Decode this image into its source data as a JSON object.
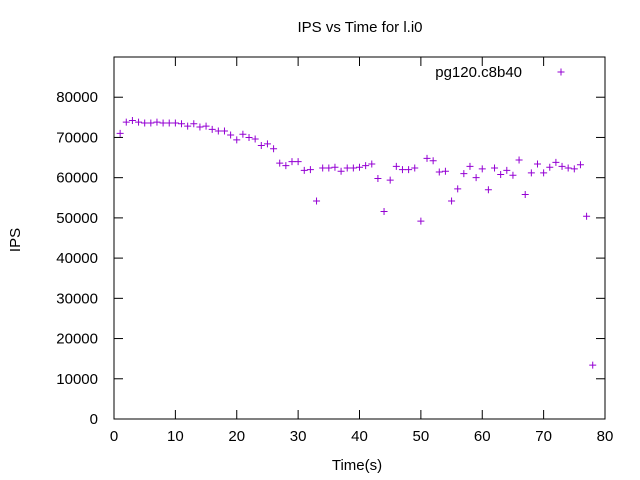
{
  "chart_data": {
    "type": "scatter",
    "title": "IPS vs Time for l.i0",
    "xlabel": "Time(s)",
    "ylabel": "IPS",
    "xlim": [
      0,
      80
    ],
    "ylim": [
      0,
      90000
    ],
    "x_ticks": [
      "0",
      "10",
      "20",
      "30",
      "40",
      "50",
      "60",
      "70",
      "80"
    ],
    "y_ticks": [
      "0",
      "10000",
      "20000",
      "30000",
      "40000",
      "50000",
      "60000",
      "70000",
      "80000"
    ],
    "grid": false,
    "legend_position": "top-right",
    "marker": "+",
    "series": [
      {
        "name": "pg120.c8b40",
        "color": "#9400d3",
        "points": [
          [
            1,
            71000
          ],
          [
            2,
            73800
          ],
          [
            3,
            74200
          ],
          [
            4,
            73800
          ],
          [
            5,
            73600
          ],
          [
            6,
            73600
          ],
          [
            7,
            73800
          ],
          [
            8,
            73600
          ],
          [
            9,
            73600
          ],
          [
            10,
            73600
          ],
          [
            11,
            73400
          ],
          [
            12,
            72800
          ],
          [
            13,
            73400
          ],
          [
            14,
            72600
          ],
          [
            15,
            72800
          ],
          [
            16,
            72000
          ],
          [
            17,
            71600
          ],
          [
            18,
            71600
          ],
          [
            19,
            70600
          ],
          [
            20,
            69400
          ],
          [
            21,
            70800
          ],
          [
            22,
            70000
          ],
          [
            23,
            69600
          ],
          [
            24,
            68000
          ],
          [
            25,
            68400
          ],
          [
            26,
            67200
          ],
          [
            27,
            63600
          ],
          [
            28,
            63000
          ],
          [
            29,
            64000
          ],
          [
            30,
            64000
          ],
          [
            31,
            61800
          ],
          [
            32,
            62000
          ],
          [
            33,
            54200
          ],
          [
            34,
            62400
          ],
          [
            35,
            62400
          ],
          [
            36,
            62600
          ],
          [
            37,
            61600
          ],
          [
            38,
            62400
          ],
          [
            39,
            62400
          ],
          [
            40,
            62600
          ],
          [
            41,
            63000
          ],
          [
            42,
            63400
          ],
          [
            43,
            59800
          ],
          [
            44,
            51600
          ],
          [
            45,
            59400
          ],
          [
            46,
            62800
          ],
          [
            47,
            62000
          ],
          [
            48,
            62000
          ],
          [
            49,
            62400
          ],
          [
            50,
            49200
          ],
          [
            51,
            64800
          ],
          [
            52,
            64200
          ],
          [
            53,
            61400
          ],
          [
            54,
            61600
          ],
          [
            55,
            54200
          ],
          [
            56,
            57200
          ],
          [
            57,
            61000
          ],
          [
            58,
            62800
          ],
          [
            59,
            60000
          ],
          [
            60,
            62200
          ],
          [
            61,
            57000
          ],
          [
            62,
            62400
          ],
          [
            63,
            60800
          ],
          [
            64,
            61800
          ],
          [
            65,
            60600
          ],
          [
            66,
            64400
          ],
          [
            67,
            55800
          ],
          [
            68,
            61200
          ],
          [
            69,
            63400
          ],
          [
            70,
            61200
          ],
          [
            71,
            62600
          ],
          [
            72,
            63800
          ],
          [
            73,
            62800
          ],
          [
            74,
            62400
          ],
          [
            75,
            62200
          ],
          [
            76,
            63200
          ],
          [
            77,
            50400
          ],
          [
            78,
            13400
          ]
        ]
      }
    ]
  }
}
